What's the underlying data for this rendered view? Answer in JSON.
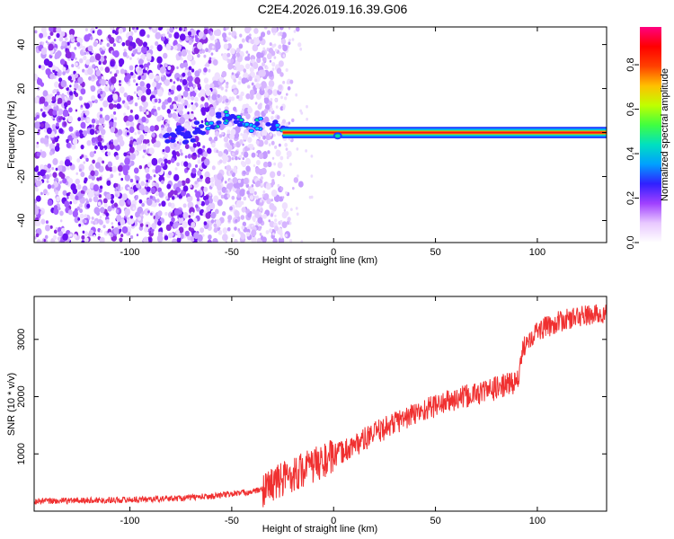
{
  "title": "C2E4.2026.019.16.39.G06",
  "colors": {
    "snr_line": "#f03030",
    "spectro_background": "#ffffff",
    "spectro_scatter": "#8a2be2",
    "axis": "#000000"
  },
  "chart_data": [
    {
      "type": "heatmap",
      "name": "spectrogram",
      "title": "C2E4.2026.019.16.39.G06",
      "xlabel": "Height of straight line (km)",
      "ylabel": "Frequency (Hz)",
      "xlim": [
        -147,
        134
      ],
      "ylim": [
        -50,
        48
      ],
      "xticks": [
        -100,
        -50,
        0,
        50,
        100
      ],
      "yticks": [
        -40,
        -20,
        0,
        20,
        40
      ],
      "colorbar": {
        "label": "Normalized spectral amplitude",
        "range": [
          0,
          0.97
        ],
        "ticks": [
          0.0,
          0.2,
          0.4,
          0.6,
          0.8
        ],
        "colormap": [
          "#ffffff",
          "#e8c8ff",
          "#a040ff",
          "#3020ff",
          "#00a0ff",
          "#00e0c0",
          "#40ff40",
          "#c0ff00",
          "#ffc000",
          "#ff4000",
          "#ff0000",
          "#ff0080"
        ]
      },
      "features": {
        "noise_region_x": [
          -147,
          -35
        ],
        "signal_line_freq": 0,
        "signal_start_x": -80
      }
    },
    {
      "type": "line",
      "name": "snr",
      "xlabel": "Height of straight line (km)",
      "ylabel": "SNR (10 * v/v)",
      "xlim": [
        -147,
        134
      ],
      "ylim": [
        0,
        3750
      ],
      "xticks": [
        -100,
        -50,
        0,
        50,
        100
      ],
      "yticks": [
        1000,
        2000,
        3000
      ],
      "x": [
        -147,
        -120,
        -100,
        -80,
        -70,
        -60,
        -50,
        -40,
        -35,
        -30,
        -25,
        -20,
        -10,
        0,
        10,
        20,
        30,
        40,
        50,
        60,
        70,
        80,
        88,
        91,
        93,
        95,
        100,
        110,
        120,
        134
      ],
      "values": [
        170,
        190,
        200,
        220,
        240,
        260,
        300,
        340,
        380,
        480,
        560,
        650,
        800,
        950,
        1150,
        1350,
        1550,
        1700,
        1850,
        1950,
        2050,
        2150,
        2250,
        2300,
        2850,
        3000,
        3150,
        3300,
        3400,
        3450
      ]
    }
  ]
}
